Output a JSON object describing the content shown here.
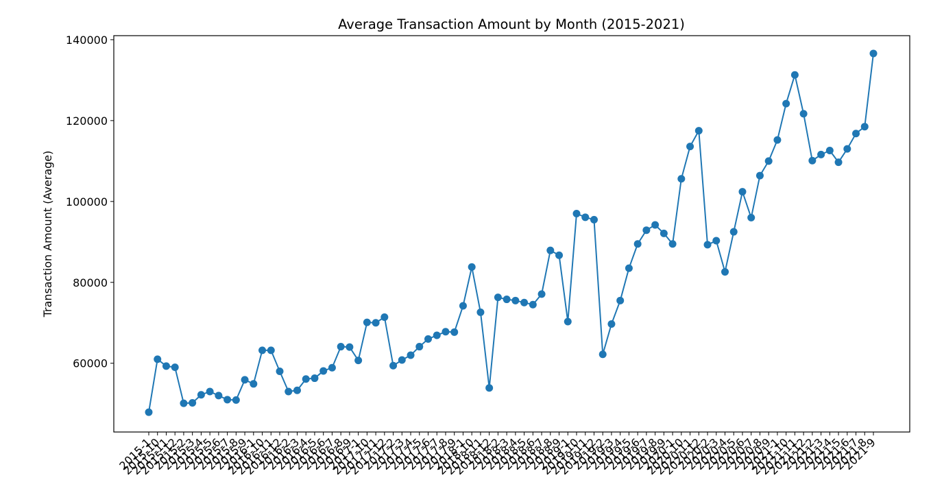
{
  "chart_data": {
    "type": "line",
    "title": "Average Transaction Amount by Month (2015-2021)",
    "xlabel": "",
    "ylabel": "Transaction Amount (Average)",
    "ylim": [
      43000,
      141000
    ],
    "yticks": [
      60000,
      80000,
      100000,
      120000,
      140000
    ],
    "grid": false,
    "color": "#1f77b4",
    "x": [
      "2015-1",
      "2015-10",
      "2015-11",
      "2015-12",
      "2015-2",
      "2015-3",
      "2015-4",
      "2015-5",
      "2015-6",
      "2015-7",
      "2015-8",
      "2015-9",
      "2016-1",
      "2016-10",
      "2016-11",
      "2016-12",
      "2016-2",
      "2016-3",
      "2016-4",
      "2016-5",
      "2016-6",
      "2016-7",
      "2016-8",
      "2016-9",
      "2017-1",
      "2017-10",
      "2017-11",
      "2017-12",
      "2017-2",
      "2017-3",
      "2017-4",
      "2017-5",
      "2017-6",
      "2017-7",
      "2017-8",
      "2017-9",
      "2018-1",
      "2018-10",
      "2018-11",
      "2018-12",
      "2018-2",
      "2018-3",
      "2018-4",
      "2018-5",
      "2018-6",
      "2018-7",
      "2018-8",
      "2018-9",
      "2019-1",
      "2019-10",
      "2019-11",
      "2019-12",
      "2019-2",
      "2019-3",
      "2019-4",
      "2019-5",
      "2019-6",
      "2019-7",
      "2019-8",
      "2019-9",
      "2020-1",
      "2020-10",
      "2020-11",
      "2020-12",
      "2020-2",
      "2020-3",
      "2020-4",
      "2020-5",
      "2020-6",
      "2020-7",
      "2020-8",
      "2020-9",
      "2021-1",
      "2021-10",
      "2021-11",
      "2021-12",
      "2021-2",
      "2021-3",
      "2021-4",
      "2021-5",
      "2021-6",
      "2021-7",
      "2021-8",
      "2021-9"
    ],
    "values": [
      47900,
      61000,
      59300,
      59000,
      50100,
      50200,
      52200,
      53000,
      52000,
      51000,
      50900,
      55900,
      54900,
      63200,
      63200,
      58000,
      53000,
      53300,
      56100,
      56300,
      58100,
      58900,
      64100,
      64000,
      60700,
      70100,
      70000,
      71400,
      59400,
      60800,
      62000,
      64100,
      66000,
      66900,
      67800,
      67700,
      74200,
      83800,
      72600,
      53900,
      76300,
      75800,
      75500,
      75000,
      74500,
      77100,
      87900,
      86700,
      70300,
      97000,
      96100,
      95500,
      62200,
      69700,
      75500,
      83500,
      89500,
      92900,
      94200,
      92100,
      89500,
      105600,
      113600,
      117500,
      89300,
      90300,
      82600,
      92500,
      102400,
      96000,
      106400,
      110000,
      115200,
      124200,
      131300,
      121700,
      110100,
      111600,
      112600,
      109700,
      113000,
      116800,
      118500,
      136600
    ]
  }
}
